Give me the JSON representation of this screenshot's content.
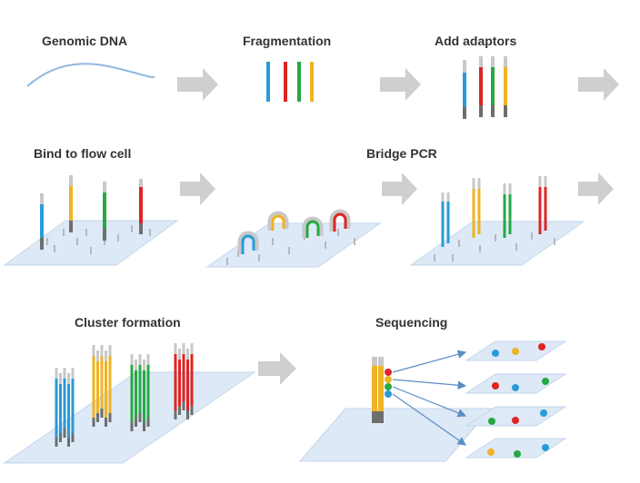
{
  "labels": {
    "genomic_dna": "Genomic DNA",
    "fragmentation": "Fragmentation",
    "add_adaptors": "Add adaptors",
    "bind_flow_cell": "Bind to flow cell",
    "bridge_pcr": "Bridge PCR",
    "cluster_formation": "Cluster formation",
    "sequencing": "Sequencing"
  },
  "colors": {
    "blue": "#2a9bd7",
    "red": "#e02424",
    "green": "#27a844",
    "yellow": "#f0b323",
    "adaptor_light": "#c8c8c8",
    "adaptor_dark": "#6e6e6e",
    "flow_cell": "#dde9f6",
    "flow_cell_edge": "#c4d6ec",
    "arrow": "#cfcfcf",
    "dna_line": "#8fb8e0",
    "pointer": "#5b8ec4"
  },
  "icons": {
    "process_arrow": "block-right-arrow-icon",
    "read_arrow": "thin-arrow-icon"
  }
}
